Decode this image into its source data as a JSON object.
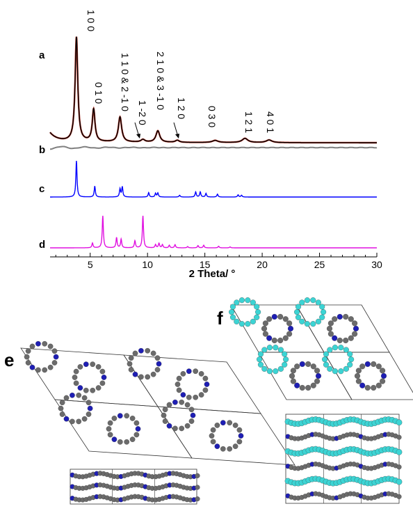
{
  "chart_data": {
    "type": "line",
    "xlabel": "2 Theta/ °",
    "xlim": [
      1.5,
      30
    ],
    "xticks": [
      5,
      10,
      15,
      20,
      25,
      30
    ],
    "grid": false,
    "legend": "none",
    "series": [
      {
        "name": "a",
        "color": "#000000",
        "fit_color": "#c0392b",
        "peaks": [
          {
            "x": 3.8,
            "h": 1.0,
            "w": 0.14
          },
          {
            "x": 5.3,
            "h": 0.31,
            "w": 0.14
          },
          {
            "x": 7.6,
            "h": 0.24,
            "w": 0.17
          },
          {
            "x": 9.6,
            "h": 0.025,
            "w": 0.2
          },
          {
            "x": 10.9,
            "h": 0.11,
            "w": 0.2
          },
          {
            "x": 12.6,
            "h": 0.02,
            "w": 0.2
          },
          {
            "x": 15.9,
            "h": 0.02,
            "w": 0.3
          },
          {
            "x": 18.5,
            "h": 0.04,
            "w": 0.3
          },
          {
            "x": 20.6,
            "h": 0.025,
            "w": 0.3
          }
        ]
      },
      {
        "name": "b",
        "color": "#808080",
        "peaks": []
      },
      {
        "name": "c",
        "color": "#0000ff",
        "peaks": [
          {
            "x": 3.8,
            "h": 1.0
          },
          {
            "x": 5.4,
            "h": 0.3
          },
          {
            "x": 7.6,
            "h": 0.22
          },
          {
            "x": 7.8,
            "h": 0.28
          },
          {
            "x": 10.1,
            "h": 0.12
          },
          {
            "x": 10.7,
            "h": 0.1
          },
          {
            "x": 10.9,
            "h": 0.11
          },
          {
            "x": 12.8,
            "h": 0.05
          },
          {
            "x": 14.2,
            "h": 0.14
          },
          {
            "x": 14.6,
            "h": 0.14
          },
          {
            "x": 15.1,
            "h": 0.1
          },
          {
            "x": 16.1,
            "h": 0.08
          },
          {
            "x": 17.9,
            "h": 0.06
          },
          {
            "x": 18.2,
            "h": 0.05
          }
        ]
      },
      {
        "name": "d",
        "color": "#e010e0",
        "peaks": [
          {
            "x": 5.2,
            "h": 0.15
          },
          {
            "x": 6.1,
            "h": 1.0
          },
          {
            "x": 7.3,
            "h": 0.32
          },
          {
            "x": 7.7,
            "h": 0.27
          },
          {
            "x": 8.9,
            "h": 0.22
          },
          {
            "x": 9.6,
            "h": 1.0
          },
          {
            "x": 10.7,
            "h": 0.1
          },
          {
            "x": 11.0,
            "h": 0.14
          },
          {
            "x": 11.3,
            "h": 0.1
          },
          {
            "x": 11.9,
            "h": 0.08
          },
          {
            "x": 12.4,
            "h": 0.1
          },
          {
            "x": 13.5,
            "h": 0.04
          },
          {
            "x": 14.4,
            "h": 0.07
          },
          {
            "x": 14.9,
            "h": 0.08
          },
          {
            "x": 16.2,
            "h": 0.05
          },
          {
            "x": 17.2,
            "h": 0.03
          }
        ]
      }
    ],
    "annotations": [
      {
        "text": "1 0 0",
        "x": 3.9,
        "vertical": true
      },
      {
        "text": "0 1 0",
        "x": 5.3,
        "vertical": true
      },
      {
        "text": "1 1 0 & 2 -1 0",
        "x": 7.6,
        "vertical": true
      },
      {
        "text": "1 -2 0",
        "x": 9.6,
        "vertical": true,
        "arrow": true
      },
      {
        "text": "2 1 0 & 3 -1 0",
        "x": 10.9,
        "vertical": true
      },
      {
        "text": "1 2 0",
        "x": 12.7,
        "vertical": true,
        "arrow": true
      },
      {
        "text": "0 3 0",
        "x": 15.9,
        "vertical": true
      },
      {
        "text": "1 2 1",
        "x": 18.6,
        "vertical": true
      },
      {
        "text": "4 0 1",
        "x": 20.6,
        "vertical": true
      }
    ]
  },
  "panels": {
    "a": "a",
    "b": "b",
    "c": "c",
    "d": "d",
    "e": "e",
    "f": "f"
  },
  "colors": {
    "framework_gray": "#6b6b6b",
    "nitrogen_blue": "#1e1eb4",
    "guest_cyan": "#3cd4d4"
  }
}
